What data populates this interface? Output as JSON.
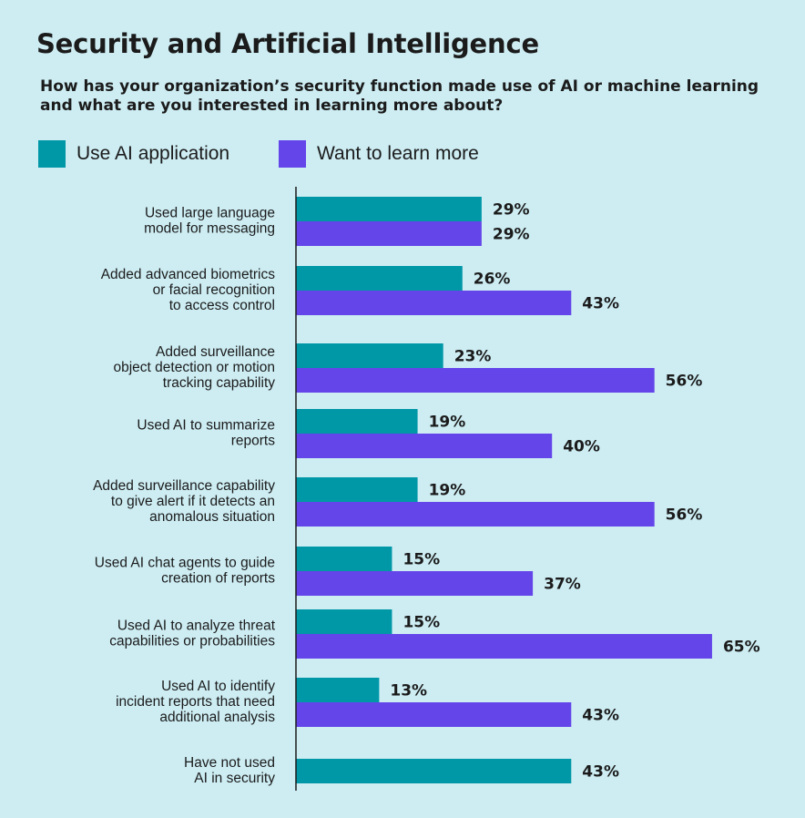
{
  "title": "Security and Artificial Intelligence",
  "subtitle": "How has your organization’s security function made use of AI or machine learning and what are you interested in learning more about?",
  "colors": {
    "use_ai": "#0097a7",
    "learn_more": "#6445ea",
    "background": "#cdedf3"
  },
  "chart_data": {
    "type": "bar",
    "orientation": "horizontal",
    "categories": [
      [
        "Used large language",
        "model for messaging"
      ],
      [
        "Added advanced biometrics",
        "or facial recognition",
        "to access control"
      ],
      [
        "Added surveillance",
        "object detection or motion",
        "tracking capability"
      ],
      [
        "Used AI to summarize",
        "reports"
      ],
      [
        "Added surveillance capability",
        "to give alert if it detects an",
        "anomalous situation"
      ],
      [
        "Used AI chat agents to guide",
        "creation of reports"
      ],
      [
        "Used AI to analyze threat",
        "capabilities or probabilities"
      ],
      [
        "Used AI to identify",
        "incident reports that need",
        "additional analysis"
      ],
      [
        "Have not used",
        "AI in security"
      ]
    ],
    "series": [
      {
        "name": "Use AI application",
        "values": [
          29,
          26,
          23,
          19,
          19,
          15,
          15,
          13,
          43
        ],
        "labels": [
          "29%",
          "26%",
          "23%",
          "19%",
          "19%",
          "15%",
          "15%",
          "13%",
          "43%"
        ]
      },
      {
        "name": "Want to learn more",
        "values": [
          29,
          43,
          56,
          40,
          56,
          37,
          65,
          43,
          null
        ],
        "labels": [
          "29%",
          "43%",
          "56%",
          "40%",
          "56%",
          "37%",
          "65%",
          "43%",
          ""
        ]
      }
    ],
    "unit": "%",
    "xlim": [
      0,
      65
    ],
    "grid": false,
    "legend_position": "top-left"
  }
}
